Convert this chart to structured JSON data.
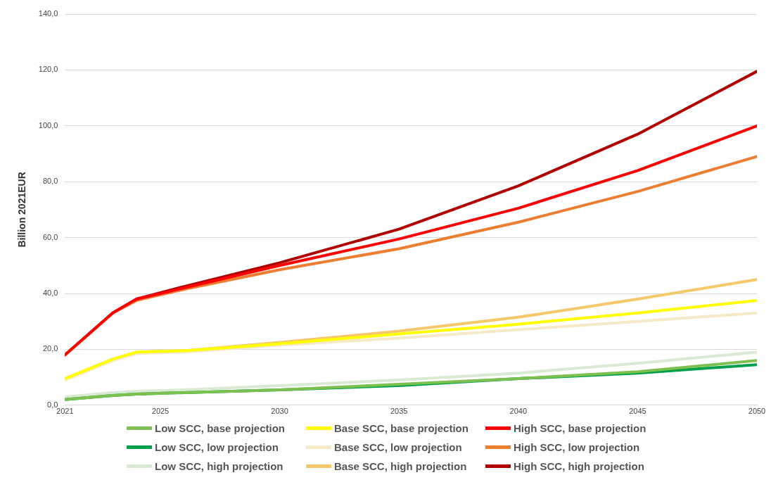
{
  "chart_data": {
    "type": "line",
    "ylabel": "Billion 2021EUR",
    "x": [
      2021,
      2023,
      2024,
      2026,
      2030,
      2035,
      2040,
      2045,
      2050
    ],
    "xlim": [
      2021,
      2050
    ],
    "xticks": [
      2021,
      2025,
      2030,
      2035,
      2040,
      2045,
      2050
    ],
    "ylim": [
      0,
      140
    ],
    "yticks": [
      {
        "value": 0,
        "label": "0,0"
      },
      {
        "value": 20,
        "label": "20,0"
      },
      {
        "value": 40,
        "label": "40,0"
      },
      {
        "value": 60,
        "label": "60,0"
      },
      {
        "value": 80,
        "label": "80,0"
      },
      {
        "value": 100,
        "label": "100,0"
      },
      {
        "value": 120,
        "label": "120,0"
      },
      {
        "value": 140,
        "label": "140,0"
      }
    ],
    "grid": "y",
    "legend": "bottom",
    "marker": "none",
    "line_style": "solid",
    "series": [
      {
        "name": "Low SCC, base projection",
        "color": "#7cc04f",
        "values": [
          2,
          3.5,
          4,
          4.5,
          5.5,
          7.5,
          9.5,
          12,
          16
        ]
      },
      {
        "name": "Base SCC, base projection",
        "color": "#ffff00",
        "values": [
          9.5,
          16.5,
          19,
          19.5,
          22,
          25.5,
          29,
          33,
          37.5
        ]
      },
      {
        "name": "High SCC, base projection",
        "color": "#ff0000",
        "values": [
          18,
          33,
          38,
          42,
          50,
          59.5,
          70.5,
          84,
          100
        ]
      },
      {
        "name": "Low SCC, low projection",
        "color": "#00a04a",
        "values": [
          2,
          3.5,
          4,
          4.5,
          5.5,
          7,
          9.5,
          11.5,
          14.5
        ]
      },
      {
        "name": "Base SCC, low projection",
        "color": "#f5e9c8",
        "values": [
          9,
          16,
          18.5,
          19,
          21.5,
          24,
          27,
          30,
          33
        ]
      },
      {
        "name": "High SCC, low projection",
        "color": "#ed7d31",
        "values": [
          18,
          33,
          37.5,
          41.5,
          48.5,
          56,
          65.5,
          76.5,
          89
        ]
      },
      {
        "name": "Low SCC, high projection",
        "color": "#d9ead3",
        "values": [
          3,
          4.5,
          5,
          5.5,
          7,
          9,
          11.5,
          15,
          19
        ]
      },
      {
        "name": "Base SCC, high projection",
        "color": "#f7c86a",
        "values": [
          9.5,
          16.5,
          19,
          19.5,
          22.5,
          26.5,
          31.5,
          38,
          45
        ]
      },
      {
        "name": "High SCC, high projection",
        "color": "#b00000",
        "values": [
          18,
          33,
          38,
          42.5,
          51,
          63,
          78.5,
          97,
          119.5
        ]
      }
    ]
  }
}
